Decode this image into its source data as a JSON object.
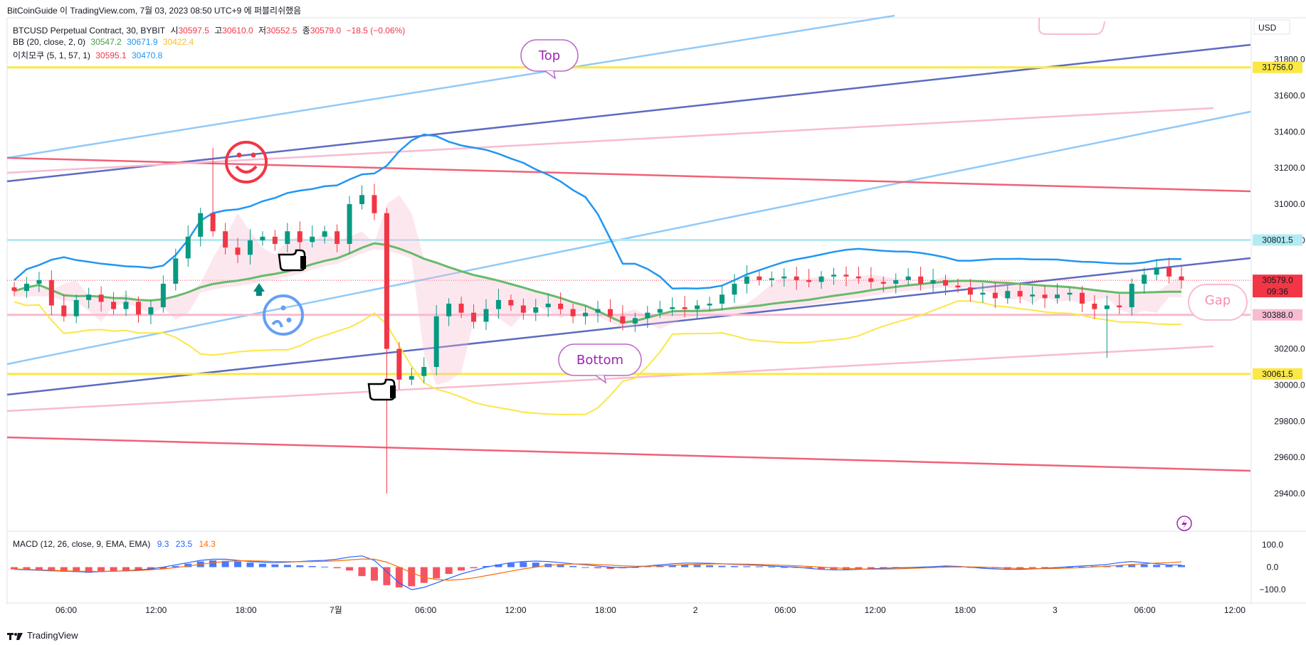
{
  "header": {
    "source": "BitCoinGuide 이 TradingView.com, 7월 03, 2023 08:50 UTC+9 에 퍼블리쉬했음"
  },
  "legend": {
    "symbol": "BTCUSD Perpetual Contract, 30, BYBIT",
    "open_label": "시",
    "open": "30597.5",
    "high_label": "고",
    "high": "30610.0",
    "low_label": "저",
    "low": "30552.5",
    "close_label": "종",
    "close": "30579.0",
    "change": "−18.5 (−0.06%)",
    "bb_label": "BB (20, close, 2, 0)",
    "bb_basis": "30547.2",
    "bb_upper": "30671.9",
    "bb_lower": "30422.4",
    "ichimoku_label": "이치모쿠 (5, 1, 57, 1)",
    "ichi_a": "30595.1",
    "ichi_b": "30470.8"
  },
  "macd_legend": {
    "label": "MACD (12, 26, close, 9, EMA, EMA)",
    "v1": "9.3",
    "v2": "23.5",
    "v3": "14.3"
  },
  "footer": {
    "brand": "TradingView"
  },
  "currency": "USD",
  "colors": {
    "up": "#089981",
    "down": "#f23645",
    "bb": "#2196f3",
    "basis": "#66bb6a",
    "lagging": "#fbe745",
    "bubble": "#9c27b0"
  },
  "annotations": {
    "top": "Top",
    "bottom": "Bottom",
    "gap": "Gap"
  },
  "chart_data": {
    "type": "candlestick",
    "symbol": "BTCUSD Perpetual Contract",
    "timeframe": "30",
    "y_ticks": [
      "31800.0",
      "31600.0",
      "31400.0",
      "31200.0",
      "31000.0",
      "30800.0",
      "30200.0",
      "30000.0",
      "29800.0",
      "29600.0",
      "29400.0"
    ],
    "ylim": [
      29300,
      32000
    ],
    "x_ticks": [
      "06:00",
      "12:00",
      "18:00",
      "7월",
      "06:00",
      "12:00",
      "18:00",
      "2",
      "06:00",
      "12:00",
      "18:00",
      "3",
      "06:00",
      "12:00"
    ],
    "price_tags": [
      {
        "value": "31756.0",
        "color": "#fbe745",
        "text_color": "#131722"
      },
      {
        "value": "30801.5",
        "color": "#b2ebf2",
        "text_color": "#131722"
      },
      {
        "value": "30579.0",
        "color": "#f23645",
        "text_color": "#ffffff",
        "sub": "09:36"
      },
      {
        "value": "30388.0",
        "color": "#f8bbd0",
        "text_color": "#131722"
      },
      {
        "value": "30061.5",
        "color": "#fbe745",
        "text_color": "#131722"
      }
    ],
    "horizontal_levels": [
      31756.0,
      30801.5,
      30388.0,
      30061.5
    ],
    "close_path": [
      30520,
      30560,
      30580,
      30440,
      30380,
      30470,
      30500,
      30460,
      30420,
      30460,
      30390,
      30430,
      30560,
      30700,
      30820,
      30950,
      30850,
      30760,
      30720,
      30800,
      30820,
      30780,
      30850,
      30790,
      30820,
      30850,
      30780,
      31000,
      31050,
      30950,
      30200,
      30030,
      30050,
      30100,
      30380,
      30450,
      30400,
      30350,
      30420,
      30470,
      30440,
      30400,
      30430,
      30450,
      30420,
      30380,
      30400,
      30420,
      30380,
      30340,
      30370,
      30400,
      30420,
      30430,
      30420,
      30440,
      30450,
      30500,
      30560,
      30600,
      30580,
      30590,
      30600,
      30580,
      30570,
      30600,
      30610,
      30600,
      30590,
      30570,
      30560,
      30580,
      30600,
      30560,
      30580,
      30550,
      30540,
      30500,
      30510,
      30480,
      30520,
      30490,
      30500,
      30480,
      30500,
      30510,
      30450,
      30420,
      30440,
      30430,
      30560,
      30610,
      30650,
      30600,
      30579
    ],
    "macd": {
      "ylim": [
        -150,
        150
      ],
      "y_ticks": [
        "100.0",
        "0.0",
        "−100.0"
      ],
      "histogram": [
        -10,
        -12,
        -15,
        -18,
        -20,
        -22,
        -25,
        -22,
        -20,
        -18,
        -15,
        -12,
        -8,
        5,
        15,
        25,
        30,
        28,
        25,
        20,
        15,
        12,
        10,
        8,
        5,
        2,
        -5,
        -15,
        -40,
        -60,
        -80,
        -90,
        -85,
        -70,
        -50,
        -30,
        -15,
        -5,
        5,
        12,
        18,
        22,
        20,
        15,
        10,
        5,
        0,
        -5,
        -8,
        -5,
        0,
        5,
        8,
        10,
        12,
        10,
        8,
        6,
        5,
        4,
        3,
        2,
        0,
        -3,
        -5,
        -8,
        -10,
        -12,
        -10,
        -8,
        -5,
        -3,
        -2,
        0,
        2,
        3,
        2,
        0,
        -2,
        -5,
        -8,
        -10,
        -8,
        -5,
        -2,
        0,
        2,
        4,
        6,
        8,
        10,
        12,
        10,
        8,
        9
      ],
      "macd_line": [
        -10,
        -12,
        -14,
        -16,
        -18,
        -20,
        -22,
        -20,
        -18,
        -16,
        -12,
        -8,
        0,
        10,
        20,
        30,
        35,
        35,
        30,
        25,
        22,
        20,
        22,
        25,
        28,
        30,
        35,
        45,
        50,
        30,
        -20,
        -70,
        -100,
        -90,
        -70,
        -50,
        -30,
        -15,
        0,
        10,
        20,
        25,
        27,
        25,
        20,
        15,
        10,
        5,
        0,
        -2,
        0,
        5,
        10,
        15,
        18,
        18,
        17,
        15,
        12,
        10,
        8,
        5,
        2,
        0,
        -5,
        -10,
        -12,
        -12,
        -10,
        -8,
        -5,
        -3,
        -2,
        0,
        2,
        5,
        3,
        0,
        -5,
        -8,
        -10,
        -10,
        -8,
        -5,
        -2,
        2,
        5,
        8,
        12,
        20,
        25,
        20,
        15,
        10,
        9.3
      ],
      "signal_line": [
        -8,
        -10,
        -12,
        -14,
        -16,
        -18,
        -19,
        -19,
        -18,
        -17,
        -15,
        -12,
        -8,
        -2,
        5,
        12,
        20,
        25,
        28,
        28,
        27,
        25,
        24,
        24,
        25,
        26,
        28,
        32,
        36,
        35,
        22,
        0,
        -25,
        -45,
        -55,
        -58,
        -55,
        -48,
        -38,
        -28,
        -18,
        -8,
        0,
        8,
        12,
        14,
        14,
        12,
        9,
        6,
        4,
        4,
        5,
        8,
        11,
        13,
        14,
        15,
        14,
        13,
        12,
        10,
        8,
        6,
        3,
        0,
        -3,
        -6,
        -8,
        -9,
        -9,
        -8,
        -6,
        -4,
        -2,
        0,
        1,
        1,
        0,
        -2,
        -4,
        -6,
        -7,
        -7,
        -6,
        -4,
        -2,
        1,
        4,
        8,
        12,
        15,
        18,
        20,
        23.5
      ]
    }
  }
}
